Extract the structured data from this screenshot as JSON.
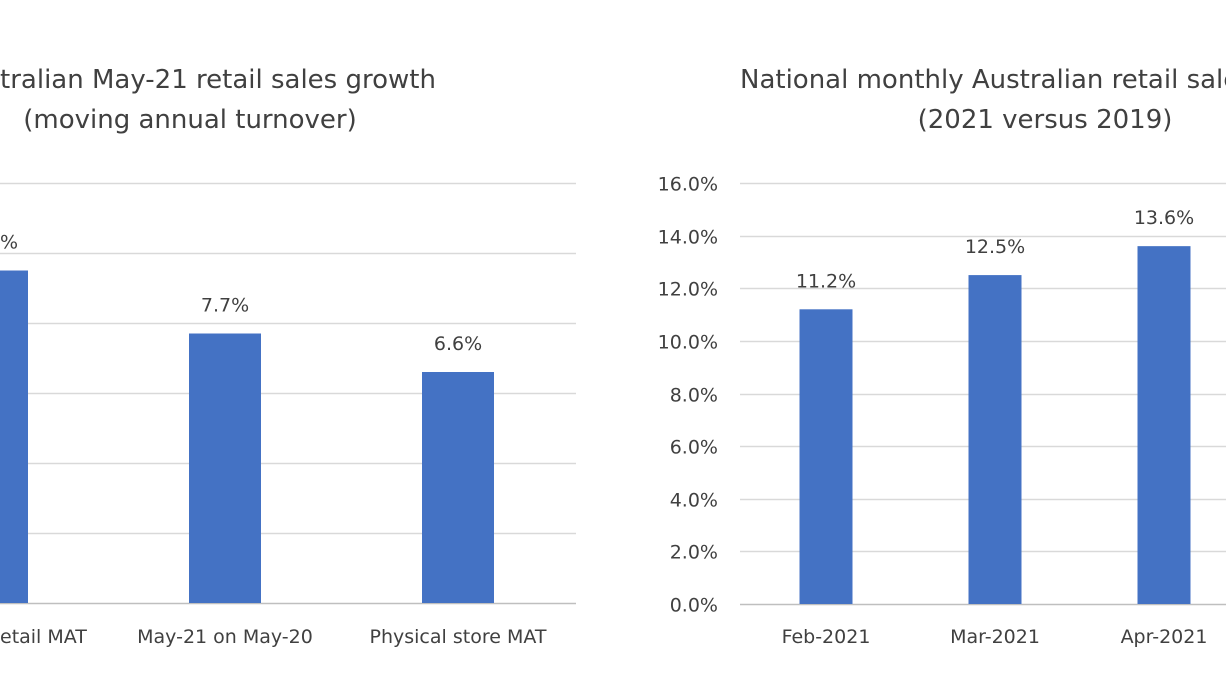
{
  "chart_data": [
    {
      "type": "bar",
      "title": "tralian May-21 retail sales growth",
      "subtitle": "(moving annual turnover)",
      "categories": [
        "etail MAT",
        "May-21 on May-20",
        "Physical store MAT"
      ],
      "data_labels": [
        "%",
        "7.7%",
        "6.6%"
      ],
      "values": [
        9.5,
        7.7,
        6.6
      ],
      "ylim": [
        0,
        12
      ],
      "grid": true,
      "bar_color": "#4472c4"
    },
    {
      "type": "bar",
      "title": "National monthly Australian retail sale",
      "subtitle": "(2021 versus 2019)",
      "categories": [
        "Feb-2021",
        "Mar-2021",
        "Apr-2021"
      ],
      "data_labels": [
        "11.2%",
        "12.5%",
        "13.6%"
      ],
      "values": [
        11.2,
        12.5,
        13.6
      ],
      "yticks": [
        "0.0%",
        "2.0%",
        "4.0%",
        "6.0%",
        "8.0%",
        "10.0%",
        "12.0%",
        "14.0%",
        "16.0%"
      ],
      "ylim": [
        0,
        16
      ],
      "grid": true,
      "bar_color": "#4472c4"
    }
  ]
}
